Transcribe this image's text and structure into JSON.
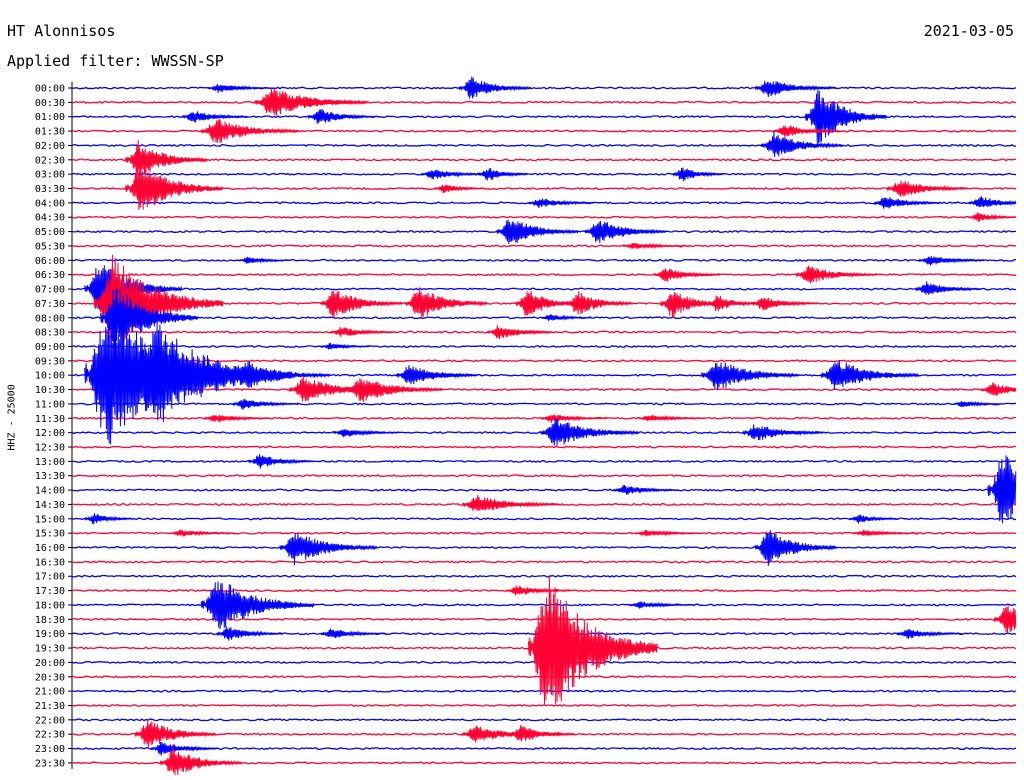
{
  "header": {
    "station": "HT Alonnisos",
    "date": "2021-03-05",
    "filter_label": "Applied filter: WWSSN-SP"
  },
  "axis": {
    "ylabel": "HHZ - 25000"
  },
  "colors": {
    "even_rows": "#0000ff",
    "odd_rows": "#ff0033",
    "axis": "#000000"
  },
  "chart_data": {
    "type": "helicorder",
    "title": "HT Alonnisos",
    "date": "2021-03-05",
    "filter": "WWSSN-SP",
    "ylabel": "HHZ - 25000",
    "minutes_per_line": 30,
    "line_colors": [
      "#0000ff",
      "#ff0033"
    ],
    "row_labels": [
      "00:00",
      "00:30",
      "01:00",
      "01:30",
      "02:00",
      "02:30",
      "03:00",
      "03:30",
      "04:00",
      "04:30",
      "05:00",
      "05:30",
      "06:00",
      "06:30",
      "07:00",
      "07:30",
      "08:00",
      "08:30",
      "09:00",
      "09:30",
      "10:00",
      "10:30",
      "11:00",
      "11:30",
      "12:00",
      "12:30",
      "13:00",
      "13:30",
      "14:00",
      "14:30",
      "15:00",
      "15:30",
      "16:00",
      "16:30",
      "17:00",
      "17:30",
      "18:00",
      "18:30",
      "19:00",
      "19:30",
      "20:00",
      "20:30",
      "21:00",
      "21:30",
      "22:00",
      "22:30",
      "23:00",
      "23:30"
    ],
    "events": [
      {
        "row": 0,
        "minute": 4.4,
        "amp": 5,
        "dur": 2.0
      },
      {
        "row": 0,
        "minute": 12.4,
        "amp": 12,
        "dur": 2.2
      },
      {
        "row": 0,
        "minute": 21.8,
        "amp": 10,
        "dur": 2.5
      },
      {
        "row": 1,
        "minute": 5.9,
        "amp": 16,
        "dur": 3.5
      },
      {
        "row": 1,
        "minute": 7.3,
        "amp": 6,
        "dur": 2.0
      },
      {
        "row": 2,
        "minute": 3.6,
        "amp": 7,
        "dur": 2.0
      },
      {
        "row": 2,
        "minute": 7.6,
        "amp": 9,
        "dur": 2.0
      },
      {
        "row": 2,
        "minute": 23.4,
        "amp": 30,
        "dur": 2.5
      },
      {
        "row": 3,
        "minute": 4.2,
        "amp": 14,
        "dur": 3.0
      },
      {
        "row": 3,
        "minute": 22.4,
        "amp": 8,
        "dur": 2.0
      },
      {
        "row": 4,
        "minute": 22.0,
        "amp": 14,
        "dur": 2.5
      },
      {
        "row": 5,
        "minute": 1.8,
        "amp": 20,
        "dur": 2.5
      },
      {
        "row": 6,
        "minute": 11.2,
        "amp": 6,
        "dur": 2.0
      },
      {
        "row": 6,
        "minute": 13.0,
        "amp": 8,
        "dur": 1.5
      },
      {
        "row": 6,
        "minute": 19.2,
        "amp": 9,
        "dur": 1.5
      },
      {
        "row": 7,
        "minute": 1.8,
        "amp": 28,
        "dur": 3.0
      },
      {
        "row": 7,
        "minute": 11.6,
        "amp": 5,
        "dur": 1.5
      },
      {
        "row": 7,
        "minute": 26.0,
        "amp": 10,
        "dur": 2.5
      },
      {
        "row": 8,
        "minute": 14.6,
        "amp": 6,
        "dur": 2.0
      },
      {
        "row": 8,
        "minute": 25.6,
        "amp": 8,
        "dur": 2.0
      },
      {
        "row": 8,
        "minute": 28.6,
        "amp": 8,
        "dur": 2.0
      },
      {
        "row": 9,
        "minute": 28.6,
        "amp": 5,
        "dur": 1.5
      },
      {
        "row": 10,
        "minute": 13.6,
        "amp": 16,
        "dur": 2.5
      },
      {
        "row": 10,
        "minute": 16.4,
        "amp": 14,
        "dur": 2.5
      },
      {
        "row": 11,
        "minute": 17.6,
        "amp": 4,
        "dur": 2.0
      },
      {
        "row": 12,
        "minute": 5.4,
        "amp": 4,
        "dur": 1.5
      },
      {
        "row": 12,
        "minute": 27.0,
        "amp": 6,
        "dur": 2.0
      },
      {
        "row": 13,
        "minute": 18.6,
        "amp": 8,
        "dur": 2.0
      },
      {
        "row": 13,
        "minute": 23.1,
        "amp": 10,
        "dur": 2.5
      },
      {
        "row": 14,
        "minute": 0.5,
        "amp": 30,
        "dur": 3.0
      },
      {
        "row": 14,
        "minute": 26.9,
        "amp": 8,
        "dur": 2.0
      },
      {
        "row": 15,
        "minute": 0.8,
        "amp": 50,
        "dur": 4.0
      },
      {
        "row": 15,
        "minute": 8.0,
        "amp": 16,
        "dur": 2.5
      },
      {
        "row": 15,
        "minute": 10.7,
        "amp": 18,
        "dur": 2.5
      },
      {
        "row": 15,
        "minute": 14.2,
        "amp": 16,
        "dur": 2.0
      },
      {
        "row": 15,
        "minute": 15.8,
        "amp": 14,
        "dur": 2.0
      },
      {
        "row": 15,
        "minute": 18.8,
        "amp": 16,
        "dur": 2.0
      },
      {
        "row": 15,
        "minute": 20.3,
        "amp": 10,
        "dur": 1.5
      },
      {
        "row": 15,
        "minute": 21.7,
        "amp": 8,
        "dur": 2.0
      },
      {
        "row": 16,
        "minute": 1.0,
        "amp": 36,
        "dur": 3.0
      },
      {
        "row": 16,
        "minute": 15.0,
        "amp": 4,
        "dur": 1.5
      },
      {
        "row": 17,
        "minute": 8.3,
        "amp": 6,
        "dur": 2.0
      },
      {
        "row": 17,
        "minute": 13.3,
        "amp": 8,
        "dur": 2.0
      },
      {
        "row": 18,
        "minute": 8.0,
        "amp": 4,
        "dur": 1.5
      },
      {
        "row": 20,
        "minute": 0.5,
        "amp": 80,
        "dur": 5.0
      },
      {
        "row": 20,
        "minute": 2.0,
        "amp": 60,
        "dur": 5.0
      },
      {
        "row": 20,
        "minute": 5.2,
        "amp": 16,
        "dur": 3.0
      },
      {
        "row": 20,
        "minute": 10.4,
        "amp": 12,
        "dur": 2.5
      },
      {
        "row": 20,
        "minute": 20.1,
        "amp": 18,
        "dur": 3.0
      },
      {
        "row": 20,
        "minute": 23.9,
        "amp": 18,
        "dur": 3.0
      },
      {
        "row": 21,
        "minute": 7.0,
        "amp": 14,
        "dur": 3.0
      },
      {
        "row": 21,
        "minute": 8.8,
        "amp": 14,
        "dur": 3.0
      },
      {
        "row": 21,
        "minute": 29.0,
        "amp": 8,
        "dur": 2.0
      },
      {
        "row": 22,
        "minute": 5.2,
        "amp": 6,
        "dur": 2.0
      },
      {
        "row": 22,
        "minute": 28.1,
        "amp": 4,
        "dur": 1.5
      },
      {
        "row": 23,
        "minute": 4.3,
        "amp": 5,
        "dur": 2.0
      },
      {
        "row": 23,
        "minute": 15.0,
        "amp": 5,
        "dur": 2.0
      },
      {
        "row": 23,
        "minute": 18.1,
        "amp": 4,
        "dur": 2.0
      },
      {
        "row": 24,
        "minute": 8.4,
        "amp": 5,
        "dur": 2.0
      },
      {
        "row": 24,
        "minute": 15.0,
        "amp": 16,
        "dur": 3.0
      },
      {
        "row": 24,
        "minute": 21.4,
        "amp": 10,
        "dur": 2.5
      },
      {
        "row": 26,
        "minute": 5.7,
        "amp": 8,
        "dur": 2.0
      },
      {
        "row": 28,
        "minute": 17.3,
        "amp": 6,
        "dur": 2.0
      },
      {
        "row": 28,
        "minute": 29.2,
        "amp": 40,
        "dur": 3.0
      },
      {
        "row": 29,
        "minute": 12.5,
        "amp": 10,
        "dur": 3.0
      },
      {
        "row": 30,
        "minute": 0.5,
        "amp": 6,
        "dur": 1.5
      },
      {
        "row": 30,
        "minute": 24.8,
        "amp": 5,
        "dur": 1.5
      },
      {
        "row": 31,
        "minute": 3.2,
        "amp": 4,
        "dur": 2.0
      },
      {
        "row": 31,
        "minute": 18.0,
        "amp": 4,
        "dur": 2.0
      },
      {
        "row": 31,
        "minute": 24.9,
        "amp": 4,
        "dur": 2.0
      },
      {
        "row": 32,
        "minute": 6.7,
        "amp": 18,
        "dur": 3.0
      },
      {
        "row": 32,
        "minute": 21.8,
        "amp": 20,
        "dur": 2.5
      },
      {
        "row": 35,
        "minute": 13.9,
        "amp": 6,
        "dur": 2.0
      },
      {
        "row": 36,
        "minute": 4.2,
        "amp": 30,
        "dur": 3.5
      },
      {
        "row": 36,
        "minute": 17.8,
        "amp": 4,
        "dur": 2.0
      },
      {
        "row": 37,
        "minute": 29.4,
        "amp": 16,
        "dur": 2.5
      },
      {
        "row": 38,
        "minute": 4.7,
        "amp": 8,
        "dur": 2.0
      },
      {
        "row": 38,
        "minute": 8.0,
        "amp": 6,
        "dur": 2.0
      },
      {
        "row": 38,
        "minute": 26.3,
        "amp": 6,
        "dur": 2.0
      },
      {
        "row": 39,
        "minute": 14.6,
        "amp": 80,
        "dur": 4.0
      },
      {
        "row": 45,
        "minute": 2.1,
        "amp": 16,
        "dur": 2.5
      },
      {
        "row": 45,
        "minute": 12.5,
        "amp": 10,
        "dur": 2.5
      },
      {
        "row": 45,
        "minute": 14.0,
        "amp": 10,
        "dur": 2.0
      },
      {
        "row": 46,
        "minute": 2.6,
        "amp": 8,
        "dur": 2.0
      },
      {
        "row": 47,
        "minute": 2.9,
        "amp": 16,
        "dur": 2.5
      }
    ]
  }
}
